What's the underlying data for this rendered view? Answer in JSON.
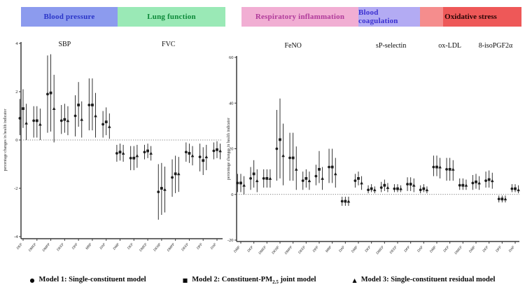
{
  "category_bands": [
    {
      "label": "Blood pressure",
      "bg": "#8c9bee",
      "fg": "#2a35c8"
    },
    {
      "label": "Lung function",
      "bg": "#9ae9b6",
      "fg": "#0d8a3a"
    },
    {
      "label": "Respiratory inflammation",
      "bg": "#f1aed3",
      "fg": "#b03a9a"
    },
    {
      "label": "Blood coagulation",
      "bg": "#b3abf3",
      "fg": "#3a2fd0"
    },
    {
      "label": "Oxidative stress",
      "bg": "#ee5858",
      "bg_left": "#f58d8d",
      "fg": "#2a0505"
    }
  ],
  "legend": {
    "items": [
      {
        "marker": "●",
        "pre": "Model 1: Single-constituent model",
        "sub": "",
        "post": ""
      },
      {
        "marker": "■",
        "pre": "Model 2: Constituent-PM",
        "sub": "2.5",
        "post": " joint model"
      },
      {
        "marker": "▲",
        "pre": "Model 3: Single-constituent residual model",
        "sub": "",
        "post": ""
      }
    ]
  },
  "chart_data": [
    {
      "id": "left",
      "type": "errorbar",
      "ylabel": "percentage changes in health indicator",
      "ylim": [
        -4,
        4
      ],
      "yticks": [
        4,
        2,
        0,
        -2,
        -4
      ],
      "zero_line": true,
      "series": [
        "Model 1",
        "Model 2",
        "Model 3"
      ],
      "series_markers": [
        "circle",
        "square",
        "triangle"
      ],
      "sections": [
        {
          "title": "SBP",
          "band": "Blood pressure",
          "groups": [
            {
              "label": "DEP",
              "models": [
                [
                  0.9,
                  0.2,
                  1.7
                ],
                [
                  1.3,
                  0.5,
                  2.1
                ],
                [
                  0.7,
                  0.0,
                  1.5
                ]
              ]
            },
            {
              "label": "DMEP",
              "models": [
                [
                  0.8,
                  0.1,
                  1.4
                ],
                [
                  0.8,
                  0.1,
                  1.4
                ],
                [
                  0.65,
                  0.0,
                  1.3
                ]
              ]
            },
            {
              "label": "DMPP",
              "models": [
                [
                  1.9,
                  0.3,
                  3.5
                ],
                [
                  1.95,
                  0.35,
                  3.55
                ],
                [
                  1.3,
                  -0.1,
                  2.7
                ]
              ]
            },
            {
              "label": "DEEP",
              "models": [
                [
                  0.8,
                  0.25,
                  1.45
                ],
                [
                  0.85,
                  0.3,
                  1.5
                ],
                [
                  0.8,
                  0.2,
                  1.4
                ]
              ]
            },
            {
              "label": "DPP",
              "models": [
                [
                  1.0,
                  0.15,
                  1.85
                ],
                [
                  1.45,
                  0.55,
                  2.4
                ],
                [
                  0.85,
                  0.1,
                  1.6
                ]
              ]
            },
            {
              "label": "MBP",
              "models": [
                [
                  1.45,
                  0.4,
                  2.55
                ],
                [
                  1.45,
                  0.4,
                  2.55
                ],
                [
                  1.0,
                  0.1,
                  1.95
                ]
              ]
            },
            {
              "label": "DAP",
              "models": [
                [
                  0.65,
                  0.1,
                  1.2
                ],
                [
                  0.75,
                  0.2,
                  1.35
                ],
                [
                  0.55,
                  0.05,
                  1.1
                ]
              ]
            }
          ]
        },
        {
          "title": "FVC",
          "band": "Lung function",
          "groups": [
            {
              "label": "DMP",
              "models": [
                [
                  -0.55,
                  -0.9,
                  -0.2
                ],
                [
                  -0.5,
                  -0.85,
                  -0.15
                ],
                [
                  -0.55,
                  -0.9,
                  -0.2
                ]
              ]
            },
            {
              "label": "DEP",
              "models": [
                [
                  -0.75,
                  -1.25,
                  -0.25
                ],
                [
                  -0.75,
                  -1.25,
                  -0.25
                ],
                [
                  -0.65,
                  -1.15,
                  -0.2
                ]
              ]
            },
            {
              "label": "DMEP",
              "models": [
                [
                  -0.5,
                  -0.8,
                  -0.2
                ],
                [
                  -0.45,
                  -0.75,
                  -0.15
                ],
                [
                  -0.55,
                  -0.85,
                  -0.25
                ]
              ]
            },
            {
              "label": "DEHP",
              "models": [
                [
                  -2.15,
                  -3.3,
                  -1.0
                ],
                [
                  -2.0,
                  -3.1,
                  -0.95
                ],
                [
                  -2.05,
                  -3.0,
                  -1.1
                ]
              ]
            },
            {
              "label": "DMPP",
              "models": [
                [
                  -1.55,
                  -2.35,
                  -0.8
                ],
                [
                  -1.4,
                  -2.2,
                  -0.65
                ],
                [
                  -1.4,
                  -2.15,
                  -0.7
                ]
              ]
            },
            {
              "label": "DEEP",
              "models": [
                [
                  -0.5,
                  -0.9,
                  -0.1
                ],
                [
                  -0.55,
                  -0.95,
                  -0.15
                ],
                [
                  -0.65,
                  -1.05,
                  -0.25
                ]
              ]
            },
            {
              "label": "DPP",
              "models": [
                [
                  -0.7,
                  -1.3,
                  -0.15
                ],
                [
                  -0.85,
                  -1.45,
                  -0.3
                ],
                [
                  -0.7,
                  -1.25,
                  -0.2
                ]
              ]
            },
            {
              "label": "DAP",
              "models": [
                [
                  -0.45,
                  -0.8,
                  -0.1
                ],
                [
                  -0.4,
                  -0.75,
                  -0.05
                ],
                [
                  -0.45,
                  -0.8,
                  -0.15
                ]
              ]
            }
          ]
        }
      ]
    },
    {
      "id": "right",
      "type": "errorbar",
      "ylabel": "percentage changes in health indicator",
      "ylim": [
        -20,
        60
      ],
      "yticks": [
        60,
        40,
        20,
        0,
        -20
      ],
      "zero_line": true,
      "series": [
        "Model 1",
        "Model 2",
        "Model 3"
      ],
      "series_markers": [
        "circle",
        "square",
        "triangle"
      ],
      "sections": [
        {
          "title": "FeNO",
          "band": "Respiratory inflammation",
          "groups": [
            {
              "label": "DMP",
              "models": [
                [
                  5,
                  1,
                  9
                ],
                [
                  5,
                  1,
                  9
                ],
                [
                  4,
                  0,
                  8
                ]
              ]
            },
            {
              "label": "DEP",
              "models": [
                [
                  7,
                  2,
                  12
                ],
                [
                  9,
                  3,
                  15
                ],
                [
                  6,
                  1,
                  11
                ]
              ]
            },
            {
              "label": "DMEP",
              "models": [
                [
                  7,
                  3,
                  11
                ],
                [
                  7,
                  3,
                  11
                ],
                [
                  7,
                  3,
                  11
                ]
              ]
            },
            {
              "label": "DEHP",
              "models": [
                [
                  20,
                  6,
                  37
                ],
                [
                  24,
                  7,
                  42
                ],
                [
                  17,
                  4,
                  31
                ]
              ]
            },
            {
              "label": "DMPP",
              "models": [
                [
                  16,
                  6,
                  27
                ],
                [
                  16,
                  6,
                  27
                ],
                [
                  11,
                  2,
                  21
                ]
              ]
            },
            {
              "label": "DEEP",
              "models": [
                [
                  6,
                  2,
                  10
                ],
                [
                  7,
                  3,
                  11
                ],
                [
                  6,
                  2,
                  10
                ]
              ]
            },
            {
              "label": "DPP",
              "models": [
                [
                  8,
                  4,
                  13
                ],
                [
                  11,
                  5,
                  19
                ],
                [
                  7,
                  2,
                  12
                ]
              ]
            },
            {
              "label": "MBP",
              "models": [
                [
                  12,
                  5,
                  20
                ],
                [
                  12,
                  5,
                  20
                ],
                [
                  9,
                  3,
                  16
                ]
              ]
            },
            {
              "label": "DAP",
              "models": [
                [
                  -3,
                  -5,
                  -1
                ],
                [
                  -3,
                  -5,
                  -1
                ],
                [
                  -3,
                  -5,
                  -1
                ]
              ]
            }
          ]
        },
        {
          "title": "sP-selectin",
          "band": "Blood coagulation",
          "groups": [
            {
              "label": "DMP",
              "models": [
                [
                  6,
                  3,
                  9
                ],
                [
                  7,
                  4,
                  10
                ],
                [
                  5,
                  2,
                  8
                ]
              ]
            },
            {
              "label": "DEP",
              "models": [
                [
                  2,
                  0.5,
                  4
                ],
                [
                  2.5,
                  1,
                  4.5
                ],
                [
                  2,
                  0.5,
                  3.5
                ]
              ]
            },
            {
              "label": "DMEP",
              "models": [
                [
                  3,
                  1,
                  5.5
                ],
                [
                  4,
                  1.5,
                  6.5
                ],
                [
                  3,
                  1,
                  5
                ]
              ]
            },
            {
              "label": "DEEP",
              "models": [
                [
                  2.5,
                  1,
                  4.5
                ],
                [
                  2.5,
                  1,
                  4.5
                ],
                [
                  2.5,
                  1,
                  4
                ]
              ]
            },
            {
              "label": "DPP",
              "models": [
                [
                  4.5,
                  1.5,
                  7.5
                ],
                [
                  4.5,
                  1.5,
                  7.5
                ],
                [
                  4,
                  1,
                  7
                ]
              ]
            },
            {
              "label": "DAP",
              "models": [
                [
                  2,
                  0.5,
                  4
                ],
                [
                  2.5,
                  1,
                  4.5
                ],
                [
                  2,
                  0.5,
                  3.5
                ]
              ]
            }
          ]
        },
        {
          "title": "ox-LDL",
          "band": "Oxidative stress",
          "groups": [
            {
              "label": "DMP",
              "models": [
                [
                  12,
                  8,
                  17
                ],
                [
                  12,
                  8,
                  17
                ],
                [
                  12,
                  7,
                  16
                ]
              ]
            },
            {
              "label": "DEP",
              "models": [
                [
                  11,
                  6,
                  16
                ],
                [
                  11,
                  6,
                  16
                ],
                [
                  11,
                  6,
                  15
                ]
              ]
            },
            {
              "label": "DMEP",
              "models": [
                [
                  4,
                  2,
                  7
                ],
                [
                  4,
                  2,
                  7
                ],
                [
                  4,
                  2,
                  6.5
                ]
              ]
            }
          ]
        },
        {
          "title": "8-isoPGF2α",
          "band": "Oxidative stress",
          "groups": [
            {
              "label": "DMP",
              "models": [
                [
                  5,
                  2,
                  8.5
                ],
                [
                  5.5,
                  2.5,
                  9
                ],
                [
                  5,
                  2,
                  8
                ]
              ]
            },
            {
              "label": "DEP",
              "models": [
                [
                  6,
                  3,
                  10
                ],
                [
                  6.5,
                  3,
                  10.5
                ],
                [
                  6,
                  2.5,
                  9.5
                ]
              ]
            },
            {
              "label": "DPP",
              "models": [
                [
                  -2,
                  -3.5,
                  -0.5
                ],
                [
                  -2,
                  -3.5,
                  -0.5
                ],
                [
                  -2,
                  -3.5,
                  -0.5
                ]
              ]
            },
            {
              "label": "DAP",
              "models": [
                [
                  2.5,
                  1,
                  4.5
                ],
                [
                  2.5,
                  1,
                  4.5
                ],
                [
                  2,
                  0.5,
                  4
                ]
              ]
            }
          ]
        }
      ]
    }
  ]
}
